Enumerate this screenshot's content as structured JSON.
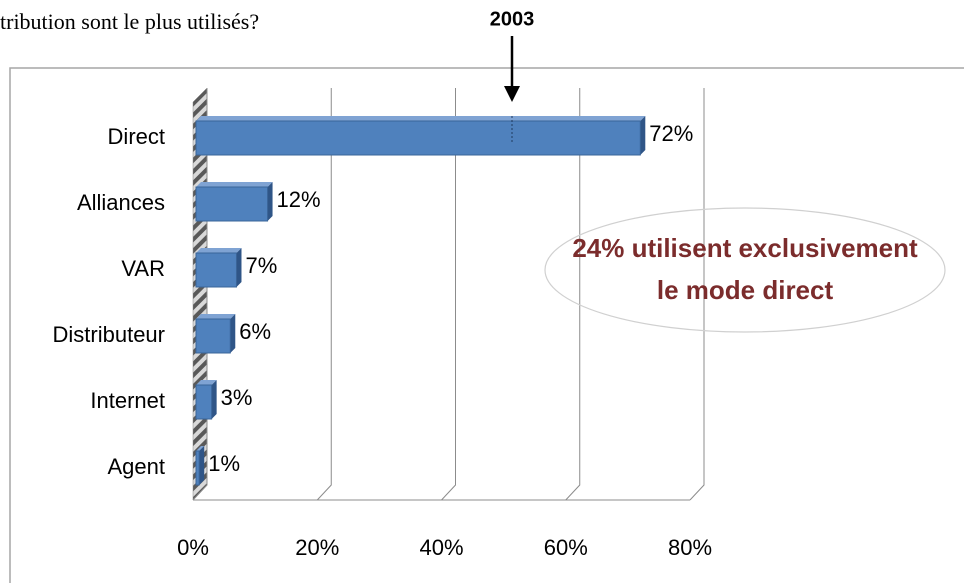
{
  "chart_data": {
    "type": "bar",
    "orientation": "horizontal",
    "title": "tribution sont le plus utilisés?",
    "categories": [
      "Direct",
      "Alliances",
      "VAR",
      "Distributeur",
      "Internet",
      "Agent"
    ],
    "values": [
      72,
      12,
      7,
      6,
      3,
      1
    ],
    "value_labels": [
      "72%",
      "12%",
      "7%",
      "6%",
      "3%",
      "1%"
    ],
    "color": "#4f81bd",
    "xlim": [
      0,
      80
    ],
    "xticks": [
      {
        "value": 0,
        "label": "0%"
      },
      {
        "value": 20,
        "label": "20%"
      },
      {
        "value": 40,
        "label": "40%"
      },
      {
        "value": 60,
        "label": "60%"
      },
      {
        "value": 80,
        "label": "80%"
      }
    ],
    "grid": true,
    "annotations": [
      "2003",
      "24% utilisent exclusivement",
      "le mode direct"
    ]
  }
}
